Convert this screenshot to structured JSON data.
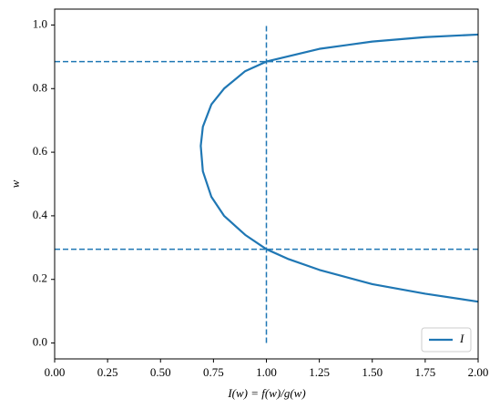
{
  "chart_data": {
    "type": "line",
    "xlabel": "I(w) = f(w)/g(w)",
    "ylabel": "w",
    "series": [
      {
        "name": "I",
        "color": "#1f77b4",
        "x": [
          2.0,
          1.75,
          1.5,
          1.25,
          1.1,
          1.0,
          0.9,
          0.8,
          0.74,
          0.7,
          0.69,
          0.7,
          0.74,
          0.8,
          0.9,
          1.0,
          1.25,
          1.5,
          1.75,
          2.0
        ],
        "values": [
          0.13,
          0.155,
          0.185,
          0.23,
          0.265,
          0.295,
          0.34,
          0.4,
          0.46,
          0.54,
          0.62,
          0.68,
          0.75,
          0.8,
          0.855,
          0.885,
          0.925,
          0.948,
          0.962,
          0.97
        ]
      }
    ],
    "hlines": [
      0.885,
      0.295
    ],
    "vline": {
      "x": 1,
      "ymin": 0,
      "ymax": 1
    },
    "xlim": [
      0,
      2
    ],
    "xticks": [
      {
        "value": 0,
        "label": "0.00"
      },
      {
        "value": 0.25,
        "label": "0.25"
      },
      {
        "value": 0.5,
        "label": "0.50"
      },
      {
        "value": 0.75,
        "label": "0.75"
      },
      {
        "value": 1,
        "label": "1.00"
      },
      {
        "value": 1.25,
        "label": "1.25"
      },
      {
        "value": 1.5,
        "label": "1.50"
      },
      {
        "value": 1.75,
        "label": "1.75"
      },
      {
        "value": 2,
        "label": "2.00"
      }
    ],
    "ylim": [
      -0.05,
      1.05
    ],
    "yticks": [
      {
        "value": 0,
        "label": "0.0"
      },
      0.2,
      0.4,
      0.6,
      0.8,
      {
        "value": 1,
        "label": "1.0"
      }
    ],
    "legend": "lower right"
  }
}
